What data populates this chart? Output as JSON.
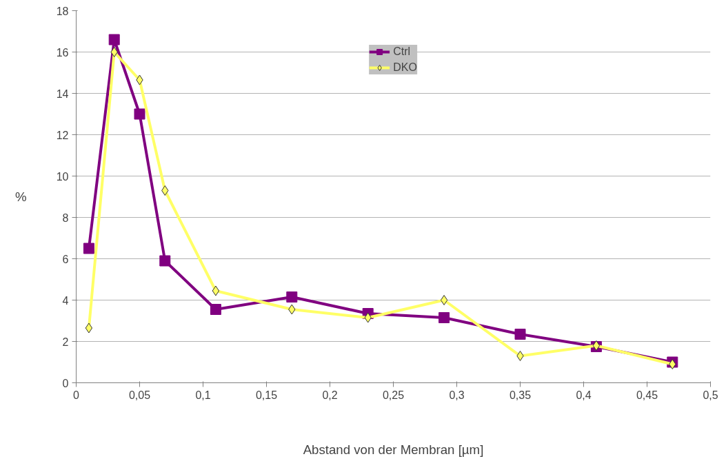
{
  "chart_data": {
    "type": "line",
    "xlabel": "Abstand von der Membran [µm]",
    "ylabel": "%",
    "x": [
      0.01,
      0.03,
      0.05,
      0.07,
      0.11,
      0.17,
      0.23,
      0.29,
      0.35,
      0.41,
      0.47
    ],
    "series": [
      {
        "name": "Ctrl",
        "color": "#800080",
        "marker": "square",
        "values": [
          6.5,
          16.6,
          13.0,
          5.9,
          3.55,
          4.15,
          3.35,
          3.15,
          2.35,
          1.75,
          1.0
        ]
      },
      {
        "name": "DKO",
        "color": "#ffff66",
        "marker": "diamond",
        "values": [
          2.65,
          16.0,
          14.65,
          9.3,
          4.45,
          3.55,
          3.15,
          4.0,
          1.3,
          1.8,
          0.9
        ]
      }
    ],
    "xlim": [
      0,
      0.5
    ],
    "ylim": [
      0,
      18
    ],
    "xticks": [
      0,
      {
        "value": 0.05,
        "label": "0,05"
      },
      {
        "value": 0.1,
        "label": "0,1"
      },
      {
        "value": 0.15,
        "label": "0,15"
      },
      {
        "value": 0.2,
        "label": "0,2"
      },
      {
        "value": 0.25,
        "label": "0,25"
      },
      {
        "value": 0.3,
        "label": "0,3"
      },
      {
        "value": 0.35,
        "label": "0,35"
      },
      {
        "value": 0.4,
        "label": "0,4"
      },
      {
        "value": 0.45,
        "label": "0,45"
      },
      {
        "value": 0.5,
        "label": "0,5"
      }
    ],
    "yticks": [
      0,
      2,
      4,
      6,
      8,
      10,
      12,
      14,
      16,
      18
    ],
    "grid": "y",
    "legend": "top",
    "line_style": "solid"
  }
}
